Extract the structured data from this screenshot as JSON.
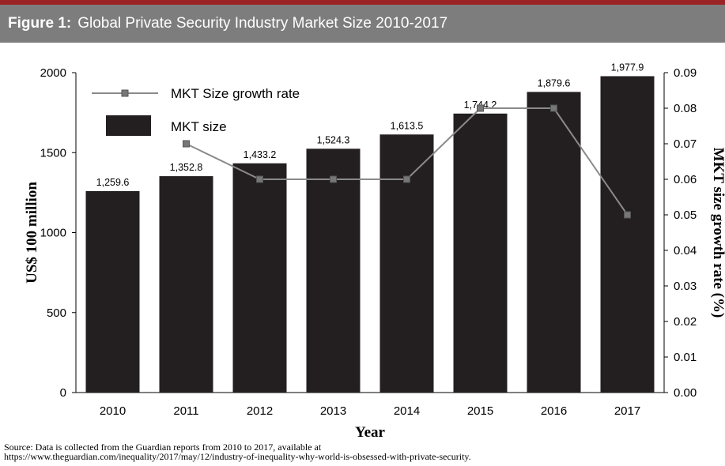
{
  "figure": {
    "label": "Figure 1:",
    "title": "Global Private Security Industry Market Size 2010-2017"
  },
  "source": {
    "line1": "Source: Data is collected from the Guardian reports from 2010 to 2017, available at",
    "line2": "https://www.theguardian.com/inequality/2017/may/12/industry-of-inequality-why-world-is-obsessed-with-private-security."
  },
  "colors": {
    "accent_bar": "#9b2326",
    "header_bg": "#7d7d7d",
    "bar_fill": "#231f20",
    "line_color": "#8a8a8a"
  },
  "chart_data": {
    "type": "bar",
    "categories": [
      "2010",
      "2011",
      "2012",
      "2013",
      "2014",
      "2015",
      "2016",
      "2017"
    ],
    "series": [
      {
        "name": "MKT size",
        "type": "bar",
        "axis": "left",
        "values": [
          1259.6,
          1352.8,
          1433.2,
          1524.3,
          1613.5,
          1744.2,
          1879.6,
          1977.9
        ],
        "data_labels": [
          "1,259.6",
          "1,352.8",
          "1,433.2",
          "1,524.3",
          "1,613.5",
          "1,744.2",
          "1,879.6",
          "1,977.9"
        ]
      },
      {
        "name": "MKT Size growth rate",
        "type": "line",
        "axis": "right",
        "values": [
          null,
          0.07,
          0.06,
          0.06,
          0.06,
          0.08,
          0.08,
          0.05
        ]
      }
    ],
    "xlabel": "Year",
    "ylabel": "US$ 100 million",
    "y2label": "MKT size growth rate (%)",
    "ylim": [
      0,
      2000
    ],
    "y_ticks": [
      "0",
      "500",
      "1000",
      "1500",
      "2000"
    ],
    "y2lim": [
      0,
      0.09
    ],
    "y2_ticks": [
      "0.00",
      "0.01",
      "0.02",
      "0.03",
      "0.04",
      "0.05",
      "0.06",
      "0.07",
      "0.08",
      "0.09"
    ],
    "grid": false,
    "legend_position": "top-left"
  }
}
